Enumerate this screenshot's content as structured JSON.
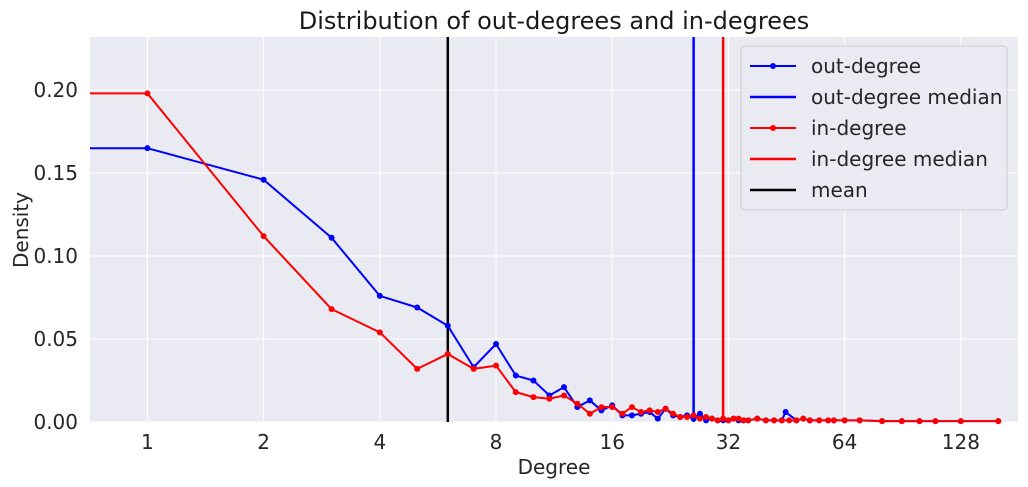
{
  "chart_data": {
    "type": "line",
    "title": "Distribution of out-degrees and in-degrees",
    "xlabel": "Degree",
    "ylabel": "Density",
    "xscale": "log2",
    "xlim": [
      0.71,
      180
    ],
    "ylim": [
      0,
      0.232
    ],
    "xticks": [
      1,
      2,
      4,
      8,
      16,
      32,
      64,
      128
    ],
    "xtick_labels": [
      "1",
      "2",
      "4",
      "8",
      "16",
      "32",
      "64",
      "128"
    ],
    "yticks": [
      0,
      0.05,
      0.1,
      0.15,
      0.2
    ],
    "ytick_labels": [
      "0.00",
      "0.05",
      "0.10",
      "0.15",
      "0.20"
    ],
    "grid": true,
    "legend_position": "top-right",
    "series": [
      {
        "name": "out-degree",
        "color": "#0000ff",
        "marker": "dot",
        "x": [
          0.71,
          1,
          2,
          3,
          4,
          5,
          6,
          7,
          8,
          9,
          10,
          11,
          12,
          13,
          14,
          15,
          16,
          17,
          18,
          19,
          20,
          21,
          22,
          23,
          24,
          25,
          26,
          27,
          28,
          29,
          30,
          31,
          32,
          33,
          34,
          35,
          36,
          38,
          40,
          42,
          44,
          45,
          48,
          50,
          52,
          55,
          58,
          60,
          64,
          70,
          80,
          90,
          100,
          110,
          128,
          160
        ],
        "values": [
          0.165,
          0.165,
          0.146,
          0.111,
          0.076,
          0.069,
          0.058,
          0.033,
          0.047,
          0.028,
          0.025,
          0.016,
          0.021,
          0.009,
          0.013,
          0.007,
          0.01,
          0.004,
          0.004,
          0.005,
          0.006,
          0.002,
          0.008,
          0.004,
          0.003,
          0.004,
          0.002,
          0.005,
          0.001,
          0.002,
          0.001,
          0.001,
          0.001,
          0.002,
          0.001,
          0.001,
          0.001,
          0.002,
          0.001,
          0.001,
          0.001,
          0.006,
          0.001,
          0.002,
          0.001,
          0.001,
          0.001,
          0.001,
          0.001,
          0.001,
          0.0005,
          0.0005,
          0.0005,
          0.0005,
          0.0005,
          0.0005
        ]
      },
      {
        "name": "in-degree",
        "color": "#ff0000",
        "marker": "dot",
        "x": [
          0.71,
          1,
          2,
          3,
          4,
          5,
          6,
          7,
          8,
          9,
          10,
          11,
          12,
          13,
          14,
          15,
          16,
          17,
          18,
          19,
          20,
          21,
          22,
          23,
          24,
          25,
          26,
          27,
          28,
          29,
          30,
          31,
          32,
          33,
          34,
          35,
          36,
          38,
          40,
          42,
          44,
          46,
          48,
          50,
          52,
          55,
          58,
          60,
          64,
          70,
          80,
          90,
          100,
          110,
          128,
          160
        ],
        "values": [
          0.198,
          0.198,
          0.112,
          0.068,
          0.054,
          0.032,
          0.041,
          0.032,
          0.034,
          0.018,
          0.015,
          0.014,
          0.016,
          0.011,
          0.005,
          0.009,
          0.009,
          0.005,
          0.009,
          0.006,
          0.007,
          0.006,
          0.008,
          0.005,
          0.003,
          0.003,
          0.004,
          0.002,
          0.003,
          0.002,
          0.001,
          0.002,
          0.001,
          0.002,
          0.002,
          0.001,
          0.001,
          0.002,
          0.001,
          0.001,
          0.001,
          0.001,
          0.001,
          0.002,
          0.001,
          0.001,
          0.001,
          0.001,
          0.001,
          0.001,
          0.0005,
          0.0005,
          0.0005,
          0.0005,
          0.0005,
          0.0005
        ]
      }
    ],
    "vlines": [
      {
        "name": "out-degree median",
        "x": 26,
        "color": "#0000ff"
      },
      {
        "name": "in-degree median",
        "x": 31,
        "color": "#ff0000"
      },
      {
        "name": "mean",
        "x": 6,
        "color": "#000000"
      }
    ],
    "legend": [
      "out-degree",
      "out-degree median",
      "in-degree",
      "in-degree median",
      "mean"
    ]
  }
}
